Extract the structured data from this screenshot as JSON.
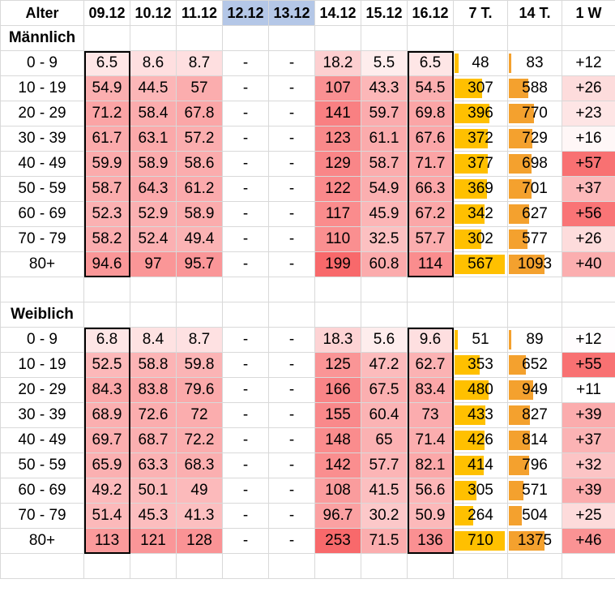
{
  "headers": [
    "Alter",
    "09.12",
    "10.12",
    "11.12",
    "12.12",
    "13.12",
    "14.12",
    "15.12",
    "16.12",
    "7 T.",
    "14 T.",
    "1 W"
  ],
  "highlight_columns": [
    "12.12",
    "13.12"
  ],
  "colors": {
    "highlight": "#b4c7e7",
    "heat_high": "#f8696b",
    "heat_low": "#ffffff",
    "bar_7t": "#ffc000",
    "bar_14t": "#f4a12e",
    "pos_high": "#f8696b"
  },
  "sections": [
    {
      "title": "Männlich",
      "rows": [
        {
          "age": "0 - 9",
          "d0912": "6.5",
          "d1012": "8.6",
          "d1112": "8.7",
          "d1212": "-",
          "d1312": "-",
          "d1412": "18.2",
          "d1512": "5.5",
          "d1612": "6.5",
          "t7": "48",
          "t14": "83",
          "w1": "+12"
        },
        {
          "age": "10 - 19",
          "d0912": "54.9",
          "d1012": "44.5",
          "d1112": "57",
          "d1212": "-",
          "d1312": "-",
          "d1412": "107",
          "d1512": "43.3",
          "d1612": "54.5",
          "t7": "307",
          "t14": "588",
          "w1": "+26"
        },
        {
          "age": "20 - 29",
          "d0912": "71.2",
          "d1012": "58.4",
          "d1112": "67.8",
          "d1212": "-",
          "d1312": "-",
          "d1412": "141",
          "d1512": "59.7",
          "d1612": "69.8",
          "t7": "396",
          "t14": "770",
          "w1": "+23"
        },
        {
          "age": "30 - 39",
          "d0912": "61.7",
          "d1012": "63.1",
          "d1112": "57.2",
          "d1212": "-",
          "d1312": "-",
          "d1412": "123",
          "d1512": "61.1",
          "d1612": "67.6",
          "t7": "372",
          "t14": "729",
          "w1": "+16"
        },
        {
          "age": "40 - 49",
          "d0912": "59.9",
          "d1012": "58.9",
          "d1112": "58.6",
          "d1212": "-",
          "d1312": "-",
          "d1412": "129",
          "d1512": "58.7",
          "d1612": "71.7",
          "t7": "377",
          "t14": "698",
          "w1": "+57"
        },
        {
          "age": "50 - 59",
          "d0912": "58.7",
          "d1012": "64.3",
          "d1112": "61.2",
          "d1212": "-",
          "d1312": "-",
          "d1412": "122",
          "d1512": "54.9",
          "d1612": "66.3",
          "t7": "369",
          "t14": "701",
          "w1": "+37"
        },
        {
          "age": "60 - 69",
          "d0912": "52.3",
          "d1012": "52.9",
          "d1112": "58.9",
          "d1212": "-",
          "d1312": "-",
          "d1412": "117",
          "d1512": "45.9",
          "d1612": "67.2",
          "t7": "342",
          "t14": "627",
          "w1": "+56"
        },
        {
          "age": "70 - 79",
          "d0912": "58.2",
          "d1012": "52.4",
          "d1112": "49.4",
          "d1212": "-",
          "d1312": "-",
          "d1412": "110",
          "d1512": "32.5",
          "d1612": "57.7",
          "t7": "302",
          "t14": "577",
          "w1": "+26"
        },
        {
          "age": "80+",
          "d0912": "94.6",
          "d1012": "97",
          "d1112": "95.7",
          "d1212": "-",
          "d1312": "-",
          "d1412": "199",
          "d1512": "60.8",
          "d1612": "114",
          "t7": "567",
          "t14": "1093",
          "w1": "+40"
        }
      ]
    },
    {
      "title": "Weiblich",
      "rows": [
        {
          "age": "0 - 9",
          "d0912": "6.8",
          "d1012": "8.4",
          "d1112": "8.7",
          "d1212": "-",
          "d1312": "-",
          "d1412": "18.3",
          "d1512": "5.6",
          "d1612": "9.6",
          "t7": "51",
          "t14": "89",
          "w1": "+12"
        },
        {
          "age": "10 - 19",
          "d0912": "52.5",
          "d1012": "58.8",
          "d1112": "59.8",
          "d1212": "-",
          "d1312": "-",
          "d1412": "125",
          "d1512": "47.2",
          "d1612": "62.7",
          "t7": "353",
          "t14": "652",
          "w1": "+55"
        },
        {
          "age": "20 - 29",
          "d0912": "84.3",
          "d1012": "83.8",
          "d1112": "79.6",
          "d1212": "-",
          "d1312": "-",
          "d1412": "166",
          "d1512": "67.5",
          "d1612": "83.4",
          "t7": "480",
          "t14": "949",
          "w1": "+11"
        },
        {
          "age": "30 - 39",
          "d0912": "68.9",
          "d1012": "72.6",
          "d1112": "72",
          "d1212": "-",
          "d1312": "-",
          "d1412": "155",
          "d1512": "60.4",
          "d1612": "73",
          "t7": "433",
          "t14": "827",
          "w1": "+39"
        },
        {
          "age": "40 - 49",
          "d0912": "69.7",
          "d1012": "68.7",
          "d1112": "72.2",
          "d1212": "-",
          "d1312": "-",
          "d1412": "148",
          "d1512": "65",
          "d1612": "71.4",
          "t7": "426",
          "t14": "814",
          "w1": "+37"
        },
        {
          "age": "50 - 59",
          "d0912": "65.9",
          "d1012": "63.3",
          "d1112": "68.3",
          "d1212": "-",
          "d1312": "-",
          "d1412": "142",
          "d1512": "57.7",
          "d1612": "82.1",
          "t7": "414",
          "t14": "796",
          "w1": "+32"
        },
        {
          "age": "60 - 69",
          "d0912": "49.2",
          "d1012": "50.1",
          "d1112": "49",
          "d1212": "-",
          "d1312": "-",
          "d1412": "108",
          "d1512": "41.5",
          "d1612": "56.6",
          "t7": "305",
          "t14": "571",
          "w1": "+39"
        },
        {
          "age": "70 - 79",
          "d0912": "51.4",
          "d1012": "45.3",
          "d1112": "41.3",
          "d1212": "-",
          "d1312": "-",
          "d1412": "96.7",
          "d1512": "30.2",
          "d1612": "50.9",
          "t7": "264",
          "t14": "504",
          "w1": "+25"
        },
        {
          "age": "80+",
          "d0912": "113",
          "d1012": "121",
          "d1112": "128",
          "d1212": "-",
          "d1312": "-",
          "d1412": "253",
          "d1512": "71.5",
          "d1612": "136",
          "t7": "710",
          "t14": "1375",
          "w1": "+46"
        }
      ]
    }
  ]
}
